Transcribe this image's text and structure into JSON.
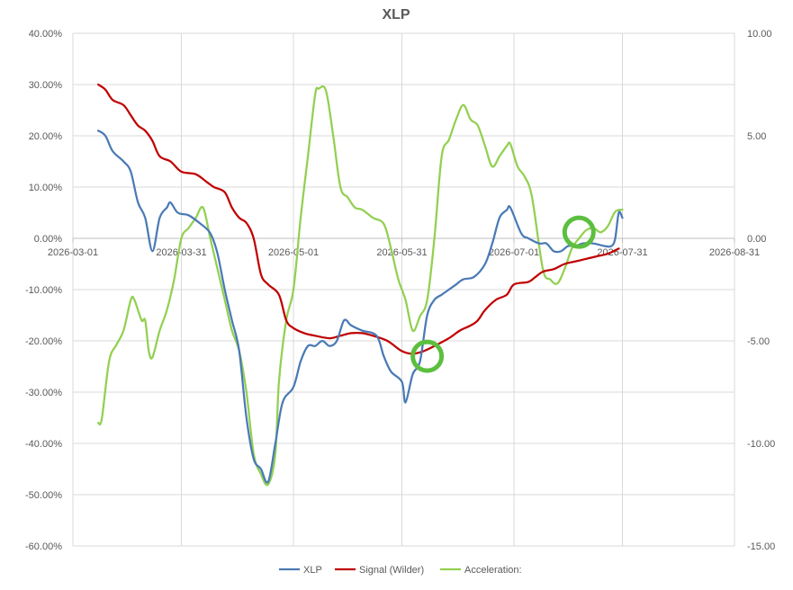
{
  "chart_data": {
    "type": "line",
    "title": "XLP",
    "xlabel": "",
    "ylabel": "",
    "x_ticks": [
      "2026-03-01",
      "2026-03-31",
      "2026-05-01",
      "2026-05-31",
      "2026-07-01",
      "2026-07-31",
      "2026-08-31"
    ],
    "x_range": [
      "2026-03-01",
      "2026-08-31"
    ],
    "y_left": {
      "min": -60,
      "max": 40,
      "step": 10,
      "format": "percent",
      "ticks": [
        "40.00%",
        "30.00%",
        "20.00%",
        "10.00%",
        "0.00%",
        "-10.00%",
        "-20.00%",
        "-30.00%",
        "-40.00%",
        "-50.00%",
        "-60.00%"
      ]
    },
    "y_right": {
      "min": -15,
      "max": 10,
      "step": 5,
      "ticks": [
        "10.00",
        "5.00",
        "0.00",
        "-5.00",
        "-10.00",
        "-15.00"
      ]
    },
    "grid": true,
    "legend_position": "bottom",
    "colors": {
      "xlp": "#4a7ab5",
      "signal": "#c00000",
      "accel": "#92d050",
      "marker": "#5cbf3f",
      "grid": "#d9d9d9",
      "axis_text": "#595959"
    },
    "series": [
      {
        "name": "XLP",
        "axis": "left",
        "color": "#4a7ab5",
        "points": [
          [
            "2026-03-08",
            21
          ],
          [
            "2026-03-10",
            20
          ],
          [
            "2026-03-12",
            17
          ],
          [
            "2026-03-15",
            15
          ],
          [
            "2026-03-17",
            13
          ],
          [
            "2026-03-19",
            7
          ],
          [
            "2026-03-21",
            4
          ],
          [
            "2026-03-23",
            -2.5
          ],
          [
            "2026-03-25",
            4
          ],
          [
            "2026-03-27",
            6
          ],
          [
            "2026-03-28",
            7
          ],
          [
            "2026-03-30",
            5
          ],
          [
            "2026-04-02",
            4.5
          ],
          [
            "2026-04-05",
            3
          ],
          [
            "2026-04-08",
            1
          ],
          [
            "2026-04-10",
            -3
          ],
          [
            "2026-04-12",
            -10
          ],
          [
            "2026-04-14",
            -16
          ],
          [
            "2026-04-16",
            -22
          ],
          [
            "2026-04-18",
            -35
          ],
          [
            "2026-04-20",
            -43
          ],
          [
            "2026-04-22",
            -45
          ],
          [
            "2026-04-24",
            -47.5
          ],
          [
            "2026-04-26",
            -40
          ],
          [
            "2026-04-28",
            -32
          ],
          [
            "2026-05-01",
            -29
          ],
          [
            "2026-05-03",
            -24
          ],
          [
            "2026-05-05",
            -21
          ],
          [
            "2026-05-07",
            -21
          ],
          [
            "2026-05-09",
            -20
          ],
          [
            "2026-05-11",
            -21
          ],
          [
            "2026-05-13",
            -20
          ],
          [
            "2026-05-15",
            -16
          ],
          [
            "2026-05-17",
            -17
          ],
          [
            "2026-05-20",
            -18
          ],
          [
            "2026-05-24",
            -19
          ],
          [
            "2026-05-26",
            -23
          ],
          [
            "2026-05-28",
            -26
          ],
          [
            "2026-05-31",
            -28
          ],
          [
            "2026-06-01",
            -32
          ],
          [
            "2026-06-03",
            -26.5
          ],
          [
            "2026-06-05",
            -24
          ],
          [
            "2026-06-07",
            -15
          ],
          [
            "2026-06-09",
            -12
          ],
          [
            "2026-06-11",
            -11
          ],
          [
            "2026-06-13",
            -10
          ],
          [
            "2026-06-15",
            -9
          ],
          [
            "2026-06-17",
            -8
          ],
          [
            "2026-06-20",
            -7.5
          ],
          [
            "2026-06-23",
            -5
          ],
          [
            "2026-06-25",
            -1
          ],
          [
            "2026-06-27",
            4
          ],
          [
            "2026-06-29",
            5.5
          ],
          [
            "2026-06-30",
            6
          ],
          [
            "2026-07-03",
            1
          ],
          [
            "2026-07-05",
            0
          ],
          [
            "2026-07-08",
            -1
          ],
          [
            "2026-07-10",
            -1
          ],
          [
            "2026-07-12",
            -2.5
          ],
          [
            "2026-07-14",
            -2.5
          ],
          [
            "2026-07-16",
            -1.5
          ],
          [
            "2026-07-18",
            -1.5
          ],
          [
            "2026-07-20",
            -1
          ],
          [
            "2026-07-23",
            -1
          ],
          [
            "2026-07-26",
            -1.5
          ],
          [
            "2026-07-28",
            -1.5
          ],
          [
            "2026-07-29",
            0
          ],
          [
            "2026-07-30",
            5
          ],
          [
            "2026-07-31",
            4
          ]
        ]
      },
      {
        "name": "Signal (Wilder)",
        "axis": "left",
        "color": "#c00000",
        "points": [
          [
            "2026-03-08",
            30
          ],
          [
            "2026-03-10",
            29
          ],
          [
            "2026-03-12",
            27
          ],
          [
            "2026-03-15",
            26
          ],
          [
            "2026-03-17",
            24
          ],
          [
            "2026-03-19",
            22
          ],
          [
            "2026-03-21",
            21
          ],
          [
            "2026-03-23",
            19
          ],
          [
            "2026-03-25",
            16
          ],
          [
            "2026-03-28",
            15
          ],
          [
            "2026-03-31",
            13
          ],
          [
            "2026-04-04",
            12.5
          ],
          [
            "2026-04-07",
            11
          ],
          [
            "2026-04-09",
            10
          ],
          [
            "2026-04-12",
            9
          ],
          [
            "2026-04-14",
            6
          ],
          [
            "2026-04-16",
            4
          ],
          [
            "2026-04-18",
            3
          ],
          [
            "2026-04-20",
            0
          ],
          [
            "2026-04-22",
            -7
          ],
          [
            "2026-04-24",
            -9
          ],
          [
            "2026-04-27",
            -11
          ],
          [
            "2026-04-29",
            -16
          ],
          [
            "2026-05-01",
            -17.5
          ],
          [
            "2026-05-04",
            -18.5
          ],
          [
            "2026-05-07",
            -19
          ],
          [
            "2026-05-11",
            -19.5
          ],
          [
            "2026-05-14",
            -19
          ],
          [
            "2026-05-17",
            -18.5
          ],
          [
            "2026-05-20",
            -18.5
          ],
          [
            "2026-05-23",
            -19
          ],
          [
            "2026-05-27",
            -20
          ],
          [
            "2026-05-31",
            -22
          ],
          [
            "2026-06-03",
            -22.5
          ],
          [
            "2026-06-06",
            -22
          ],
          [
            "2026-06-09",
            -21
          ],
          [
            "2026-06-13",
            -19.5
          ],
          [
            "2026-06-16",
            -18
          ],
          [
            "2026-06-19",
            -17
          ],
          [
            "2026-06-21",
            -16
          ],
          [
            "2026-06-23",
            -14
          ],
          [
            "2026-06-26",
            -12
          ],
          [
            "2026-06-29",
            -11
          ],
          [
            "2026-07-01",
            -9
          ],
          [
            "2026-07-05",
            -8.5
          ],
          [
            "2026-07-07",
            -7.5
          ],
          [
            "2026-07-09",
            -6.5
          ],
          [
            "2026-07-12",
            -6
          ],
          [
            "2026-07-15",
            -5
          ],
          [
            "2026-07-18",
            -4.5
          ],
          [
            "2026-07-21",
            -4
          ],
          [
            "2026-07-24",
            -3.5
          ],
          [
            "2026-07-27",
            -3
          ],
          [
            "2026-07-30",
            -2
          ]
        ]
      },
      {
        "name": "Acceleration:",
        "axis": "right",
        "color": "#92d050",
        "points": [
          [
            "2026-03-08",
            -9
          ],
          [
            "2026-03-09",
            -8.8
          ],
          [
            "2026-03-11",
            -6
          ],
          [
            "2026-03-13",
            -5.2
          ],
          [
            "2026-03-15",
            -4.5
          ],
          [
            "2026-03-17",
            -3
          ],
          [
            "2026-03-18",
            -3
          ],
          [
            "2026-03-20",
            -4
          ],
          [
            "2026-03-21",
            -4
          ],
          [
            "2026-03-22",
            -5.5
          ],
          [
            "2026-03-23",
            -5.8
          ],
          [
            "2026-03-25",
            -4.5
          ],
          [
            "2026-03-27",
            -3.5
          ],
          [
            "2026-03-29",
            -2
          ],
          [
            "2026-03-31",
            0
          ],
          [
            "2026-04-02",
            0.5
          ],
          [
            "2026-04-04",
            1
          ],
          [
            "2026-04-06",
            1.5
          ],
          [
            "2026-04-08",
            0
          ],
          [
            "2026-04-10",
            -1.5
          ],
          [
            "2026-04-12",
            -3
          ],
          [
            "2026-04-14",
            -4.5
          ],
          [
            "2026-04-16",
            -5.5
          ],
          [
            "2026-04-18",
            -7.5
          ],
          [
            "2026-04-20",
            -10.5
          ],
          [
            "2026-04-22",
            -11.5
          ],
          [
            "2026-04-24",
            -12
          ],
          [
            "2026-04-26",
            -10.5
          ],
          [
            "2026-04-27",
            -7
          ],
          [
            "2026-04-29",
            -4
          ],
          [
            "2026-05-01",
            -2.5
          ],
          [
            "2026-05-03",
            1
          ],
          [
            "2026-05-05",
            4
          ],
          [
            "2026-05-07",
            7
          ],
          [
            "2026-05-08",
            7.3
          ],
          [
            "2026-05-10",
            7.2
          ],
          [
            "2026-05-12",
            5
          ],
          [
            "2026-05-14",
            2.5
          ],
          [
            "2026-05-16",
            2
          ],
          [
            "2026-05-18",
            1.5
          ],
          [
            "2026-05-20",
            1.4
          ],
          [
            "2026-05-23",
            1
          ],
          [
            "2026-05-26",
            0.7
          ],
          [
            "2026-05-28",
            -0.5
          ],
          [
            "2026-05-30",
            -2
          ],
          [
            "2026-06-01",
            -3
          ],
          [
            "2026-06-03",
            -4.5
          ],
          [
            "2026-06-05",
            -3.8
          ],
          [
            "2026-06-07",
            -3
          ],
          [
            "2026-06-09",
            0
          ],
          [
            "2026-06-11",
            4
          ],
          [
            "2026-06-13",
            4.8
          ],
          [
            "2026-06-15",
            5.8
          ],
          [
            "2026-06-17",
            6.5
          ],
          [
            "2026-06-19",
            5.8
          ],
          [
            "2026-06-21",
            5.5
          ],
          [
            "2026-06-23",
            4.5
          ],
          [
            "2026-06-25",
            3.5
          ],
          [
            "2026-06-27",
            4
          ],
          [
            "2026-06-29",
            4.5
          ],
          [
            "2026-06-30",
            4.6
          ],
          [
            "2026-07-02",
            3.5
          ],
          [
            "2026-07-04",
            3
          ],
          [
            "2026-07-06",
            2
          ],
          [
            "2026-07-09",
            -1.5
          ],
          [
            "2026-07-11",
            -2
          ],
          [
            "2026-07-13",
            -2.2
          ],
          [
            "2026-07-15",
            -1.5
          ],
          [
            "2026-07-17",
            -0.5
          ],
          [
            "2026-07-19",
            0
          ],
          [
            "2026-07-21",
            0.4
          ],
          [
            "2026-07-23",
            0.5
          ],
          [
            "2026-07-25",
            0.3
          ],
          [
            "2026-07-27",
            0.6
          ],
          [
            "2026-07-29",
            1.3
          ],
          [
            "2026-07-31",
            1.4
          ]
        ]
      }
    ],
    "annotations": [
      {
        "type": "circle",
        "color": "#5cbf3f",
        "x": "2026-06-07",
        "y": -23,
        "axis": "left"
      },
      {
        "type": "circle",
        "color": "#5cbf3f",
        "x": "2026-07-19",
        "y": 0.3,
        "axis": "right"
      }
    ]
  }
}
